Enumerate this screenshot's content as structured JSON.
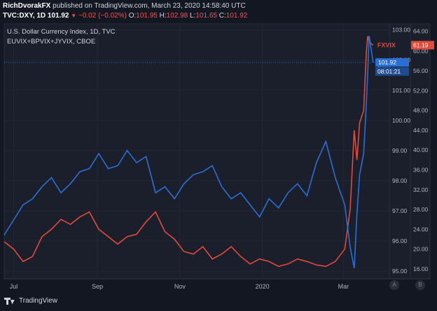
{
  "header": {
    "author": "RichDvorakFX",
    "published_text": "published on TradingView.com, March 23, 2020 14:58:40 UTC",
    "symbol": "TVC:DXY, 1D",
    "last": "101.92",
    "change": "−0.02 (−0.02%)",
    "o_label": "O:",
    "o": "101.95",
    "h_label": "H:",
    "h": "102.98",
    "l_label": "L:",
    "l": "101.65",
    "c_label": "C:",
    "c": "101.92"
  },
  "chart_data": {
    "type": "line",
    "title": "U.S. Dollar Currency Index, 1D, TVC",
    "subtitle": "EUVIX+BPVIX+JYVIX, CBOE",
    "x_ticks": [
      "Jul",
      "Sep",
      "Nov",
      "2020",
      "Mar"
    ],
    "x_tick_dates": [
      "2019-07-01",
      "2019-09-01",
      "2019-11-01",
      "2020-01-01",
      "2020-03-01"
    ],
    "x_range": [
      "2019-06-24",
      "2020-04-04"
    ],
    "left_axis": {
      "label": "",
      "ticks": [
        "103.00",
        "102.00",
        "101.00",
        "100.00",
        "99.00",
        "98.00",
        "97.00",
        "96.00",
        "95.00"
      ],
      "range": [
        94.75,
        103.2
      ]
    },
    "right_axis": {
      "label": "",
      "ticks": [
        "64.00",
        "60.00",
        "56.00",
        "52.00",
        "48.00",
        "44.00",
        "40.00",
        "36.00",
        "32.00",
        "28.00",
        "24.00",
        "20.00",
        "16.00"
      ],
      "range": [
        14.0,
        65.5
      ]
    },
    "series": [
      {
        "name": "DXY",
        "axis": "left",
        "color": "#2a6fd4",
        "x": [
          "2019-06-24",
          "2019-07-01",
          "2019-07-08",
          "2019-07-15",
          "2019-07-22",
          "2019-07-29",
          "2019-08-05",
          "2019-08-12",
          "2019-08-19",
          "2019-08-26",
          "2019-09-02",
          "2019-09-09",
          "2019-09-16",
          "2019-09-23",
          "2019-09-30",
          "2019-10-07",
          "2019-10-14",
          "2019-10-21",
          "2019-10-28",
          "2019-11-04",
          "2019-11-11",
          "2019-11-18",
          "2019-11-25",
          "2019-12-02",
          "2019-12-09",
          "2019-12-16",
          "2019-12-23",
          "2019-12-30",
          "2020-01-06",
          "2020-01-13",
          "2020-01-20",
          "2020-01-27",
          "2020-02-03",
          "2020-02-10",
          "2020-02-17",
          "2020-02-24",
          "2020-03-02",
          "2020-03-06",
          "2020-03-09",
          "2020-03-11",
          "2020-03-13",
          "2020-03-16",
          "2020-03-18",
          "2020-03-19",
          "2020-03-20",
          "2020-03-23"
        ],
        "values": [
          96.2,
          96.7,
          97.2,
          97.4,
          97.8,
          98.1,
          97.6,
          97.9,
          98.3,
          98.4,
          98.9,
          98.4,
          98.5,
          99.0,
          98.6,
          98.8,
          97.6,
          97.8,
          97.4,
          97.9,
          98.2,
          98.3,
          98.5,
          97.8,
          97.4,
          97.6,
          97.2,
          96.8,
          97.4,
          97.1,
          97.6,
          97.9,
          97.5,
          98.6,
          99.3,
          98.1,
          97.2,
          95.8,
          95.1,
          96.9,
          98.2,
          98.9,
          100.6,
          101.6,
          102.8,
          101.92
        ]
      },
      {
        "name": "FXVIX",
        "axis": "right",
        "color": "#e24a3b",
        "x": [
          "2019-06-24",
          "2019-07-01",
          "2019-07-08",
          "2019-07-15",
          "2019-07-22",
          "2019-07-29",
          "2019-08-05",
          "2019-08-12",
          "2019-08-19",
          "2019-08-26",
          "2019-09-02",
          "2019-09-09",
          "2019-09-16",
          "2019-09-23",
          "2019-09-30",
          "2019-10-07",
          "2019-10-14",
          "2019-10-21",
          "2019-10-28",
          "2019-11-04",
          "2019-11-11",
          "2019-11-18",
          "2019-11-25",
          "2019-12-02",
          "2019-12-09",
          "2019-12-16",
          "2019-12-23",
          "2019-12-30",
          "2020-01-06",
          "2020-01-13",
          "2020-01-20",
          "2020-01-27",
          "2020-02-03",
          "2020-02-10",
          "2020-02-17",
          "2020-02-24",
          "2020-03-02",
          "2020-03-06",
          "2020-03-09",
          "2020-03-11",
          "2020-03-13",
          "2020-03-16",
          "2020-03-18",
          "2020-03-19",
          "2020-03-20",
          "2020-03-23"
        ],
        "values": [
          21.5,
          20.0,
          17.5,
          18.5,
          22.5,
          24.0,
          26.0,
          25.0,
          26.5,
          27.5,
          24.0,
          22.5,
          21.0,
          22.5,
          23.0,
          25.5,
          27.5,
          23.5,
          22.0,
          19.5,
          19.0,
          20.5,
          18.0,
          19.0,
          20.5,
          18.5,
          17.0,
          18.0,
          17.5,
          16.5,
          17.0,
          18.0,
          17.5,
          16.8,
          16.5,
          17.5,
          20.0,
          28.0,
          44.0,
          38.0,
          45.5,
          48.0,
          60.0,
          63.0,
          61.8,
          61.19
        ]
      }
    ],
    "last_labels": {
      "dxy_value": "101.92",
      "dxy_countdown": "08:01:21",
      "fxvix_value": "61.19"
    },
    "grid": true,
    "legend": "inline-right"
  },
  "footer": {
    "logo_text": "TradingView",
    "axis_button_a": "A",
    "axis_button_b": "B"
  }
}
